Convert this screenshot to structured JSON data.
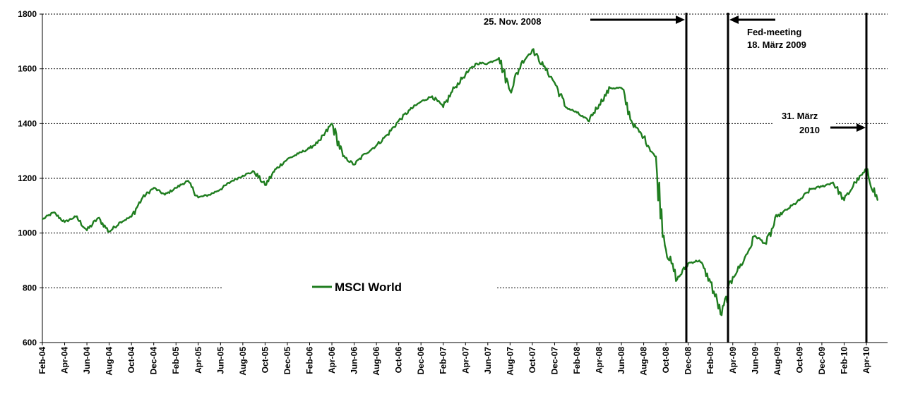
{
  "chart_data": {
    "type": "line",
    "title": "",
    "xlabel": "",
    "ylabel": "",
    "ylim": [
      600,
      1800
    ],
    "yticks": [
      600,
      800,
      1000,
      1200,
      1400,
      1600,
      1800
    ],
    "grid": "horizontal dashed",
    "legend_position": "center-left",
    "x_tick_labels": [
      "Feb-04",
      "Apr-04",
      "Jun-04",
      "Aug-04",
      "Oct-04",
      "Dec-04",
      "Feb-05",
      "Apr-05",
      "Jun-05",
      "Aug-05",
      "Oct-05",
      "Dec-05",
      "Feb-06",
      "Apr-06",
      "Jun-06",
      "Aug-06",
      "Oct-06",
      "Dec-06",
      "Feb-07",
      "Apr-07",
      "Jun-07",
      "Aug-07",
      "Oct-07",
      "Dec-07",
      "Feb-08",
      "Apr-08",
      "Jun-08",
      "Aug-08",
      "Oct-08",
      "Dec-08",
      "Feb-09",
      "Apr-09",
      "Jun-09",
      "Aug-09",
      "Oct-09",
      "Dec-09",
      "Feb-10",
      "Apr-10"
    ],
    "series": [
      {
        "name": "MSCI World",
        "color": "#1f7d1f",
        "x": [
          "2004-02",
          "2004-03",
          "2004-04",
          "2004-05",
          "2004-06",
          "2004-07",
          "2004-08",
          "2004-09",
          "2004-10",
          "2004-11",
          "2004-12",
          "2005-01",
          "2005-02",
          "2005-03",
          "2005-04",
          "2005-05",
          "2005-06",
          "2005-07",
          "2005-08",
          "2005-09",
          "2005-10",
          "2005-11",
          "2005-12",
          "2006-01",
          "2006-02",
          "2006-03",
          "2006-04",
          "2006-05",
          "2006-06",
          "2006-07",
          "2006-08",
          "2006-09",
          "2006-10",
          "2006-11",
          "2006-12",
          "2007-01",
          "2007-02",
          "2007-03",
          "2007-04",
          "2007-05",
          "2007-06",
          "2007-07",
          "2007-08",
          "2007-09",
          "2007-10",
          "2007-11",
          "2007-12",
          "2008-01",
          "2008-02",
          "2008-03",
          "2008-04",
          "2008-05",
          "2008-06",
          "2008-07",
          "2008-08",
          "2008-09",
          "2008-10",
          "2008-11",
          "2008-12",
          "2009-01",
          "2009-02",
          "2009-03",
          "2009-04",
          "2009-05",
          "2009-06",
          "2009-07",
          "2009-08",
          "2009-09",
          "2009-10",
          "2009-11",
          "2009-12",
          "2010-01",
          "2010-02",
          "2010-03",
          "2010-04",
          "2010-05"
        ],
        "y": [
          1050,
          1075,
          1040,
          1060,
          1010,
          1055,
          1005,
          1040,
          1060,
          1130,
          1165,
          1140,
          1165,
          1190,
          1130,
          1140,
          1160,
          1190,
          1210,
          1225,
          1175,
          1235,
          1270,
          1290,
          1310,
          1340,
          1400,
          1280,
          1250,
          1290,
          1320,
          1360,
          1410,
          1450,
          1480,
          1500,
          1460,
          1530,
          1580,
          1620,
          1620,
          1640,
          1520,
          1620,
          1670,
          1610,
          1550,
          1460,
          1440,
          1410,
          1470,
          1530,
          1530,
          1400,
          1350,
          1280,
          940,
          830,
          890,
          900,
          820,
          700,
          840,
          900,
          990,
          960,
          1060,
          1090,
          1120,
          1160,
          1170,
          1185,
          1120,
          1185,
          1230,
          1120
        ]
      }
    ]
  },
  "legend": {
    "label": "MSCI World"
  },
  "annotations": [
    {
      "lines": [
        "25. Nov. 2008"
      ],
      "date": "2008-11-25"
    },
    {
      "lines": [
        "Fed-meeting",
        "18. März 2009"
      ],
      "date": "2009-03-18"
    },
    {
      "lines": [
        "31. März",
        "2010"
      ],
      "date": "2010-03-31"
    }
  ]
}
